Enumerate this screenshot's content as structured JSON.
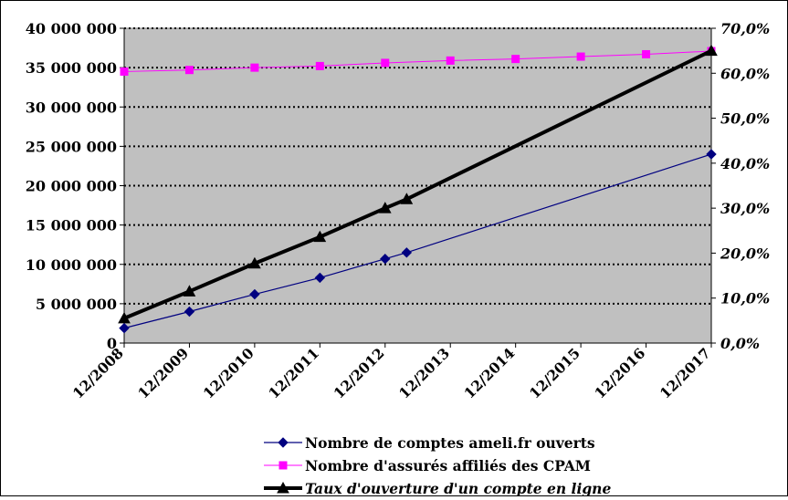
{
  "chart_data": {
    "type": "line",
    "title": "",
    "xlabel": "",
    "ylabel": "",
    "categories": [
      "12/2008",
      "12/2009",
      "12/2010",
      "12/2011",
      "12/2012",
      "12/2013",
      "12/2014",
      "12/2015",
      "12/2016",
      "12/2017"
    ],
    "left_axis": {
      "ylim": [
        0,
        40000000
      ],
      "ticks": [
        0,
        5000000,
        10000000,
        15000000,
        20000000,
        25000000,
        30000000,
        35000000,
        40000000
      ],
      "tick_labels": [
        "0",
        "5 000 000",
        "10 000 000",
        "15 000 000",
        "20 000 000",
        "25 000 000",
        "30 000 000",
        "35 000 000",
        "40 000 000"
      ]
    },
    "right_axis": {
      "ylim": [
        0,
        0.7
      ],
      "ticks": [
        0,
        0.1,
        0.2,
        0.3,
        0.4,
        0.5,
        0.6,
        0.7
      ],
      "tick_labels": [
        "0,0%",
        "10,0%",
        "20,0%",
        "30,0%",
        "40,0%",
        "50,0%",
        "60,0%",
        "70,0%"
      ]
    },
    "grid": true,
    "grid_style": "dotted horizontal",
    "plot_background": "#c0c0c0",
    "legend_position": "bottom",
    "series": [
      {
        "name": "Nombre de comptes ameli.fr ouverts",
        "axis": "left",
        "color": "#000080",
        "marker": "diamond",
        "points": [
          {
            "x": 0,
            "y": 1900000
          },
          {
            "x": 1,
            "y": 4000000
          },
          {
            "x": 2,
            "y": 6200000
          },
          {
            "x": 3,
            "y": 8300000
          },
          {
            "x": 4,
            "y": 10700000
          },
          {
            "x": 4.33,
            "y": 11500000
          },
          {
            "x": 9,
            "y": 24000000
          }
        ]
      },
      {
        "name": "Nombre d'assurés affiliés des CPAM",
        "axis": "left",
        "color": "#ff00ff",
        "marker": "square",
        "points": [
          {
            "x": 0,
            "y": 34500000
          },
          {
            "x": 1,
            "y": 34700000
          },
          {
            "x": 2,
            "y": 35000000
          },
          {
            "x": 3,
            "y": 35200000
          },
          {
            "x": 4,
            "y": 35600000
          },
          {
            "x": 5,
            "y": 35900000
          },
          {
            "x": 6,
            "y": 36100000
          },
          {
            "x": 7,
            "y": 36400000
          },
          {
            "x": 8,
            "y": 36700000
          },
          {
            "x": 9,
            "y": 37100000
          }
        ]
      },
      {
        "name": "Taux d'ouverture d'un compte en ligne",
        "axis": "right",
        "color": "#000000",
        "marker": "triangle",
        "points": [
          {
            "x": 0,
            "y": 0.055
          },
          {
            "x": 1,
            "y": 0.115
          },
          {
            "x": 2,
            "y": 0.177
          },
          {
            "x": 3,
            "y": 0.236
          },
          {
            "x": 4,
            "y": 0.3
          },
          {
            "x": 4.33,
            "y": 0.32
          },
          {
            "x": 9,
            "y": 0.65
          }
        ]
      }
    ]
  }
}
